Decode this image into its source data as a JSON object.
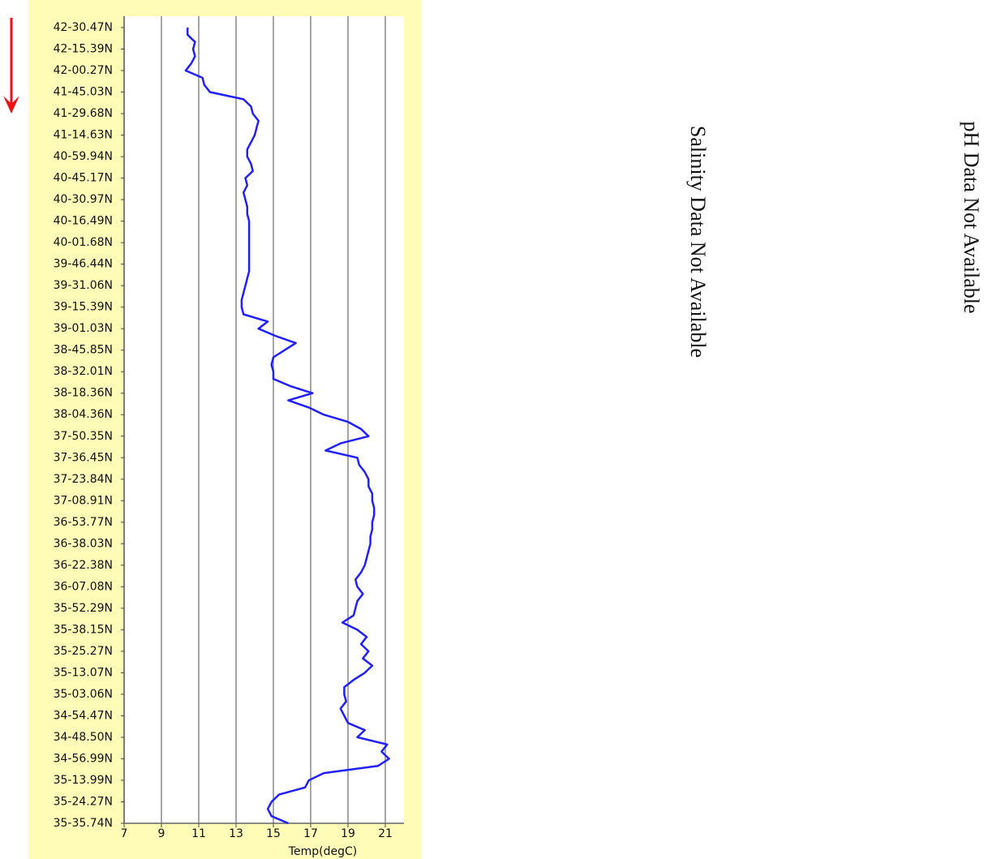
{
  "chart_data": {
    "type": "line",
    "orientation": "horizontal",
    "xlabel": "Temp(degC)",
    "xlim": [
      7,
      22
    ],
    "xticks": [
      7,
      9,
      11,
      13,
      15,
      17,
      19,
      21
    ],
    "grid": true,
    "categories": [
      "42-30.47N",
      null,
      null,
      "42-15.39N",
      null,
      null,
      "42-00.27N",
      null,
      null,
      "41-45.03N",
      null,
      null,
      "41-29.68N",
      null,
      null,
      "41-14.63N",
      null,
      null,
      "40-59.94N",
      null,
      null,
      "40-45.17N",
      null,
      null,
      "40-30.97N",
      null,
      null,
      "40-16.49N",
      null,
      null,
      "40-01.68N",
      null,
      null,
      "39-46.44N",
      null,
      null,
      "39-31.06N",
      null,
      null,
      "39-15.39N",
      null,
      null,
      "39-01.03N",
      null,
      null,
      "38-45.85N",
      null,
      null,
      "38-32.01N",
      null,
      null,
      "38-18.36N",
      null,
      null,
      "38-04.36N",
      null,
      null,
      "37-50.35N",
      null,
      null,
      "37-36.45N",
      null,
      null,
      "37-23.84N",
      null,
      null,
      "37-08.91N",
      null,
      null,
      "36-53.77N",
      null,
      null,
      "36-38.03N",
      null,
      null,
      "36-22.38N",
      null,
      null,
      "36-07.08N",
      null,
      null,
      "35-52.29N",
      null,
      null,
      "35-38.15N",
      null,
      null,
      "35-25.27N",
      null,
      null,
      "35-13.07N",
      null,
      null,
      "35-03.06N",
      null,
      null,
      "34-54.47N",
      null,
      null,
      "34-48.50N",
      null,
      null,
      "34-56.99N",
      null,
      null,
      "35-13.99N",
      null,
      null,
      "35-24.27N",
      null,
      null,
      "35-35.74N"
    ],
    "series": [
      {
        "color": "#1f1fff",
        "values": [
          10.4,
          10.4,
          10.8,
          10.7,
          10.8,
          10.6,
          10.3,
          11.2,
          11.3,
          11.6,
          13.4,
          13.8,
          13.9,
          14.2,
          14.1,
          14.0,
          13.8,
          13.6,
          13.6,
          13.8,
          13.9,
          13.5,
          13.6,
          13.4,
          13.5,
          13.6,
          13.6,
          13.7,
          13.7,
          13.7,
          13.7,
          13.7,
          13.7,
          13.7,
          13.7,
          13.6,
          13.5,
          13.4,
          13.3,
          13.3,
          13.4,
          14.7,
          14.2,
          15.1,
          16.2,
          15.6,
          15.0,
          14.9,
          15.0,
          15.0,
          15.9,
          17.1,
          15.8,
          16.9,
          17.7,
          19.0,
          19.7,
          20.1,
          18.6,
          17.8,
          19.5,
          19.6,
          19.9,
          20.1,
          20.1,
          20.3,
          20.3,
          20.4,
          20.4,
          20.3,
          20.3,
          20.2,
          20.2,
          20.1,
          20.0,
          19.9,
          19.7,
          19.4,
          19.5,
          19.8,
          19.5,
          19.4,
          19.3,
          18.7,
          19.5,
          20.0,
          19.7,
          20.1,
          19.8,
          20.3,
          19.9,
          19.3,
          18.8,
          18.8,
          18.9,
          18.6,
          18.8,
          19.0,
          19.9,
          19.5,
          21.1,
          20.8,
          21.2,
          20.6,
          17.7,
          16.9,
          16.7,
          15.3,
          14.9,
          14.7,
          14.9,
          15.8
        ]
      }
    ],
    "annotations": [
      "Salinity Data Not Available",
      "pH Data Not Available"
    ]
  }
}
